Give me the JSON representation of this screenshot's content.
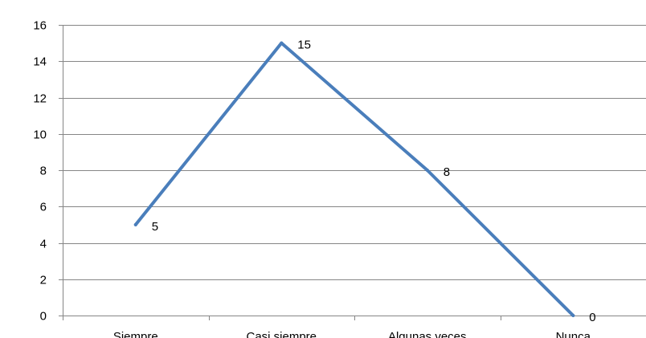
{
  "chart_data": {
    "type": "line",
    "categories": [
      "Siempre",
      "Casi siempre",
      "Algunas veces",
      "Nunca"
    ],
    "series": [
      {
        "values": [
          5,
          15,
          8,
          0
        ],
        "color": "#4a7ebb"
      }
    ],
    "data_labels": [
      "5",
      "15",
      "8",
      "0"
    ],
    "ylim": [
      0,
      16
    ],
    "yticks": [
      0,
      2,
      4,
      6,
      8,
      10,
      12,
      14,
      16
    ],
    "title": "",
    "xlabel": "",
    "ylabel": "",
    "grid": true,
    "legend": "none",
    "colors": {
      "gridline": "#868686",
      "axis": "#868686",
      "line": "#4a7ebb",
      "text": "#000000"
    }
  }
}
